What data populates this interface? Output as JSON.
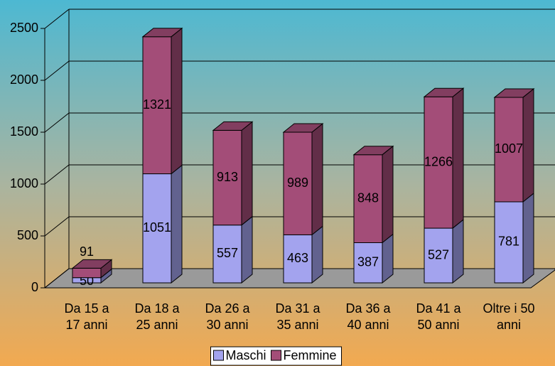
{
  "chart_data": {
    "type": "bar3d_stacked",
    "categories": [
      "Da 15 a\n17 anni",
      "Da 18 a\n25 anni",
      "Da 26 a\n30 anni",
      "Da 31 a\n35 anni",
      "Da 36 a\n40 anni",
      "Da 41 a\n50 anni",
      "Oltre i 50\nanni"
    ],
    "series": [
      {
        "name": "Maschi",
        "color": "#a3a3ee",
        "values": [
          50,
          1051,
          557,
          463,
          387,
          527,
          781
        ]
      },
      {
        "name": "Femmine",
        "color": "#a34d78",
        "values": [
          91,
          1321,
          913,
          989,
          848,
          1266,
          1007
        ]
      }
    ],
    "ylim": [
      0,
      2500
    ],
    "yticks": [
      0,
      500,
      1000,
      1500,
      2000,
      2500
    ],
    "grid": true,
    "legend": "bottom"
  }
}
